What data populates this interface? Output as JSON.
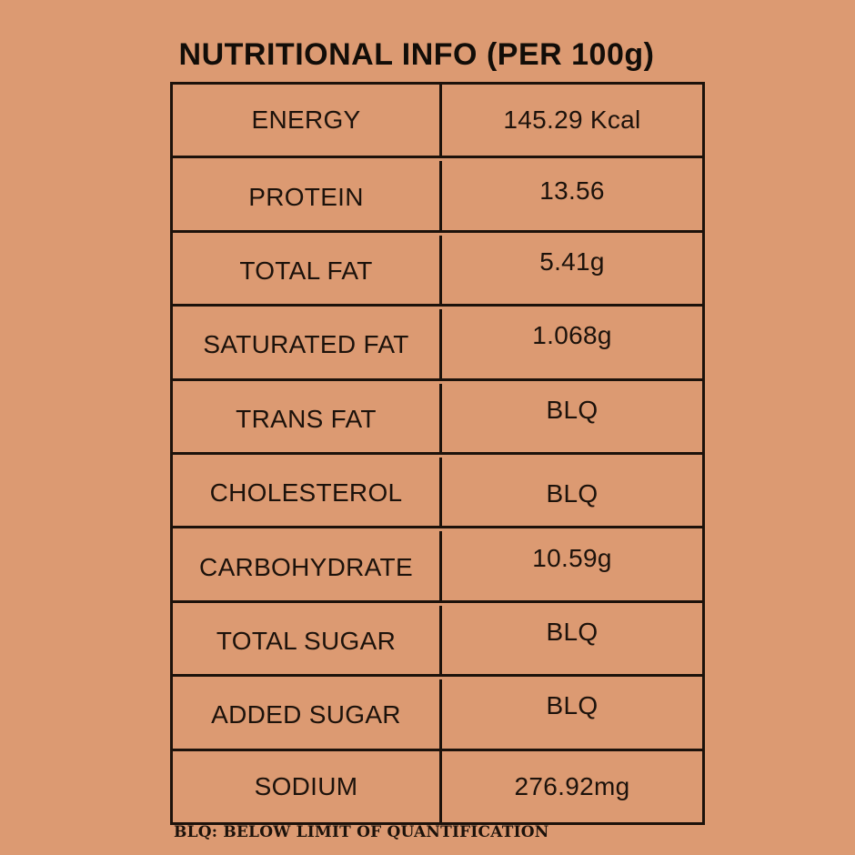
{
  "title": "NUTRITIONAL INFO (PER 100g)",
  "footnote": "BLQ: BELOW LIMIT OF QUANTIFICATION",
  "table": {
    "rows": [
      {
        "label": "ENERGY",
        "value": "145.29 Kcal"
      },
      {
        "label": "PROTEIN",
        "value": "13.56"
      },
      {
        "label": "TOTAL FAT",
        "value": "5.41g"
      },
      {
        "label": "SATURATED FAT",
        "value": "1.068g"
      },
      {
        "label": "TRANS FAT",
        "value": "BLQ"
      },
      {
        "label": "CHOLESTEROL",
        "value": "BLQ"
      },
      {
        "label": "CARBOHYDRATE",
        "value": "10.59g"
      },
      {
        "label": "TOTAL SUGAR",
        "value": "BLQ"
      },
      {
        "label": "ADDED SUGAR",
        "value": "BLQ"
      },
      {
        "label": "SODIUM",
        "value": "276.92mg"
      }
    ]
  },
  "colors": {
    "background": "#DC9A72",
    "line": "#1C120B",
    "text": "#1C120B",
    "title_text": "#120D08"
  }
}
